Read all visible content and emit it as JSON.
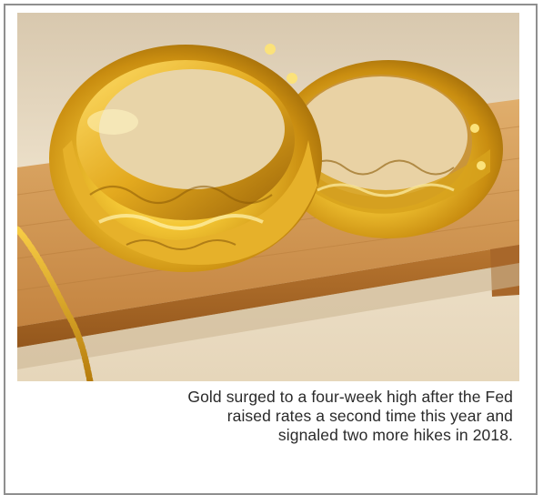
{
  "caption": {
    "line1": "Gold surged to a four-week high after the Fed",
    "line2": "raised rates a second time this year and",
    "line3": "signaled two more hikes in 2018."
  },
  "colors": {
    "background_wall": "#e9d9bf",
    "wood_shelf": "#c98e45",
    "gold_light": "#ffe680",
    "gold_mid": "#d9a21a",
    "gold_dark": "#8a5a05",
    "frame_border": "#8f8f8f"
  }
}
